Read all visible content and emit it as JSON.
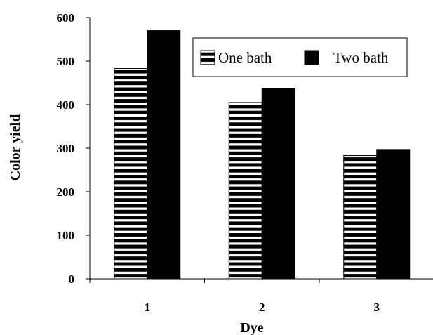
{
  "chart_data": {
    "type": "bar",
    "title": "",
    "xlabel": "Dye",
    "ylabel": "Color yield",
    "categories": [
      "1",
      "2",
      "3"
    ],
    "series": [
      {
        "name": "One bath",
        "values": [
          483,
          405,
          283
        ],
        "pattern": "horizontal-stripes",
        "color": "#000000"
      },
      {
        "name": "Two bath",
        "values": [
          570,
          437,
          297
        ],
        "pattern": "solid",
        "color": "#000000"
      }
    ],
    "ylim": [
      0,
      600
    ],
    "yticks": [
      "0",
      "100",
      "200",
      "300",
      "400",
      "500",
      "600"
    ],
    "grid": false,
    "legend_position": "top-right"
  }
}
